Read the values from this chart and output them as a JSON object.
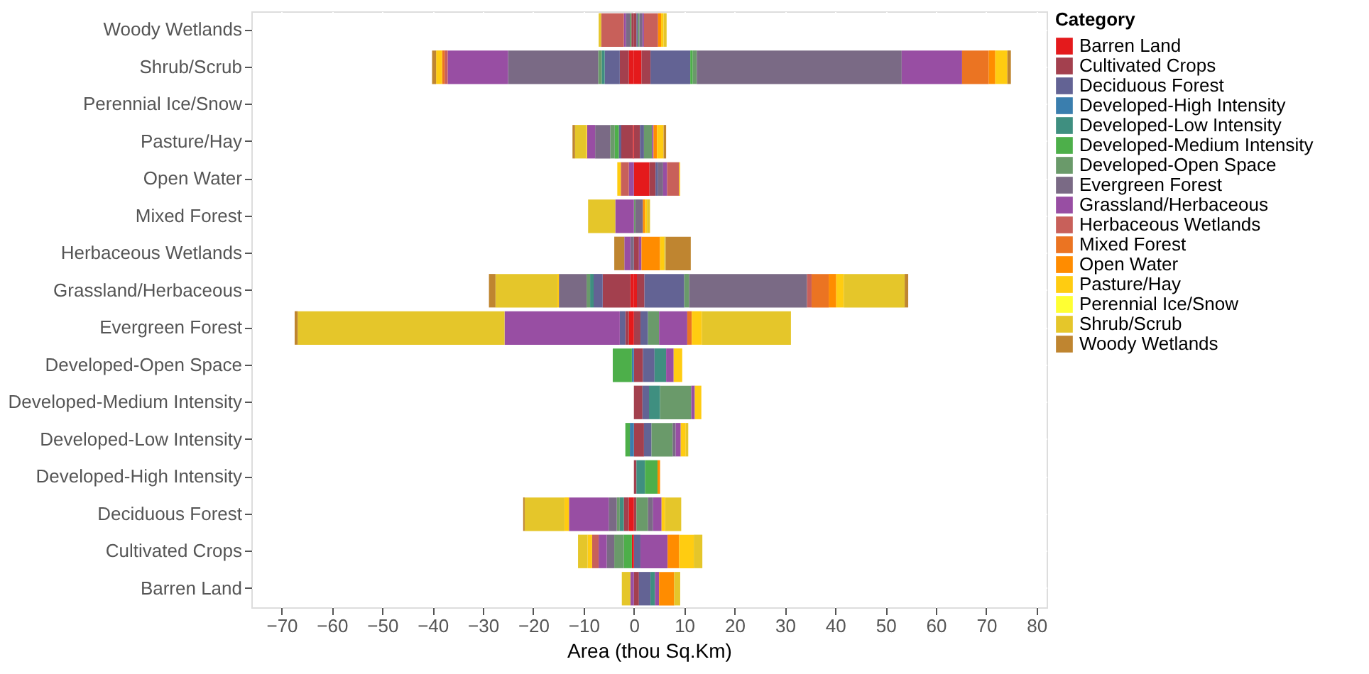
{
  "chart_data": {
    "type": "bar",
    "orientation": "horizontal",
    "stacked": true,
    "xlabel": "Area (thou Sq.Km)",
    "legend_title": "Category",
    "legend": "right",
    "grid": true,
    "categories": [
      "Woody Wetlands",
      "Shrub/Scrub",
      "Perennial Ice/Snow",
      "Pasture/Hay",
      "Open Water",
      "Mixed Forest",
      "Herbaceous Wetlands",
      "Grassland/Herbaceous",
      "Evergreen Forest",
      "Developed-Open Space",
      "Developed-Medium Intensity",
      "Developed-Low Intensity",
      "Developed-High Intensity",
      "Deciduous Forest",
      "Cultivated Crops",
      "Barren Land"
    ],
    "xlim": [
      -76,
      82
    ],
    "xticks": [
      -70,
      -60,
      -50,
      -40,
      -30,
      -20,
      -10,
      0,
      10,
      20,
      30,
      40,
      50,
      60,
      70,
      80
    ],
    "series": [
      {
        "name": "Barren Land",
        "color": "#e41a1c",
        "values": [
          null,
          1.5,
          null,
          null,
          3.1,
          null,
          null,
          0.6,
          null,
          null,
          null,
          null,
          null,
          null,
          null,
          null
        ]
      },
      {
        "name": "Cultivated Crops",
        "color": "#a3404e",
        "values": [
          0.5,
          1.8,
          null,
          1.2,
          1.2,
          null,
          1.0,
          1.5,
          1.3,
          1.8,
          1.7,
          2.0,
          0.5,
          0.5,
          null,
          1.0
        ]
      },
      {
        "name": "Deciduous Forest",
        "color": "#636394",
        "values": [
          0.3,
          7.9,
          null,
          0.8,
          0.5,
          null,
          null,
          7.9,
          1.5,
          2.3,
          1.3,
          1.5,
          null,
          null,
          1.3,
          2.3
        ]
      },
      {
        "name": "Developed-High Intensity",
        "color": "#3a7eae",
        "values": [
          null,
          null,
          null,
          null,
          null,
          null,
          null,
          null,
          null,
          null,
          null,
          null,
          null,
          null,
          null,
          null
        ]
      },
      {
        "name": "Developed-Low Intensity",
        "color": "#3f8f80",
        "values": [
          null,
          null,
          null,
          null,
          null,
          null,
          null,
          null,
          null,
          2.3,
          2.2,
          null,
          1.7,
          null,
          null,
          0.9
        ]
      },
      {
        "name": "Developed-Medium Intensity",
        "color": "#4daf4a",
        "values": [
          null,
          0.5,
          null,
          null,
          null,
          null,
          null,
          null,
          null,
          null,
          null,
          null,
          2.5,
          null,
          null,
          null
        ]
      },
      {
        "name": "Developed-Open Space",
        "color": "#6a9a6a",
        "values": [
          0.3,
          0.8,
          null,
          1.6,
          null,
          0.3,
          null,
          1.0,
          2.2,
          null,
          6.2,
          4.2,
          null,
          2.3,
          null,
          null
        ]
      },
      {
        "name": "Evergreen Forest",
        "color": "#7a6a85",
        "values": [
          0.6,
          40.7,
          null,
          null,
          1.0,
          1.5,
          null,
          23.4,
          null,
          null,
          null,
          0.6,
          null,
          1.0,
          null,
          null
        ]
      },
      {
        "name": "Grassland/Herbaceous",
        "color": "#984ea3",
        "values": [
          0.3,
          12.0,
          null,
          0.3,
          0.8,
          null,
          0.5,
          null,
          5.6,
          1.5,
          0.7,
          1.0,
          null,
          1.7,
          5.4,
          0.8
        ]
      },
      {
        "name": "Herbaceous Wetlands",
        "color": "#c8605a",
        "values": [
          2.8,
          null,
          null,
          null,
          2.4,
          null,
          null,
          0.9,
          null,
          null,
          null,
          null,
          null,
          null,
          null,
          null
        ]
      },
      {
        "name": "Mixed Forest",
        "color": "#eb7422",
        "values": [
          null,
          5.3,
          null,
          null,
          null,
          null,
          null,
          3.4,
          0.9,
          null,
          null,
          null,
          null,
          null,
          null,
          null
        ]
      },
      {
        "name": "Open Water",
        "color": "#ff8c00",
        "values": [
          0.6,
          1.3,
          null,
          0.7,
          null,
          0.4,
          3.7,
          1.5,
          null,
          null,
          null,
          null,
          0.5,
          null,
          2.3,
          3.0
        ]
      },
      {
        "name": "Pasture/Hay",
        "color": "#ffcc11",
        "values": [
          0.5,
          2.4,
          null,
          1.3,
          0.2,
          0.4,
          0.8,
          1.5,
          2.0,
          1.7,
          1.3,
          1.0,
          null,
          0.7,
          2.9,
          null
        ]
      },
      {
        "name": "Perennial Ice/Snow",
        "color": "#ffff33",
        "values": [
          null,
          null,
          null,
          null,
          null,
          null,
          null,
          null,
          null,
          null,
          null,
          null,
          null,
          null,
          null,
          null
        ]
      },
      {
        "name": "Shrub/Scrub",
        "color": "#e5c62a",
        "values": [
          0.6,
          null,
          null,
          null,
          null,
          0.6,
          0.3,
          12.1,
          17.7,
          null,
          null,
          0.5,
          null,
          3.2,
          1.7,
          1.2
        ]
      },
      {
        "name": "Woody Wetlands",
        "color": "#bf8530",
        "values": [
          null,
          0.7,
          null,
          0.5,
          null,
          null,
          5.0,
          0.7,
          null,
          null,
          null,
          null,
          null,
          null,
          null,
          null
        ]
      },
      {
        "color": "#e41a1c",
        "values": [
          null,
          -1.0,
          null,
          -0.2,
          null,
          null,
          null,
          -0.7,
          -1.0,
          null,
          null,
          null,
          null,
          -1.0,
          -0.4,
          null
        ]
      },
      {
        "color": "#a3404e",
        "values": [
          -0.5,
          -1.8,
          null,
          -2.3,
          null,
          null,
          null,
          -5.5,
          -0.7,
          null,
          null,
          null,
          null,
          -1.0,
          null,
          null
        ]
      },
      {
        "color": "#636394",
        "values": [
          null,
          -3.0,
          null,
          -0.5,
          null,
          null,
          null,
          -1.8,
          -1.1,
          null,
          null,
          null,
          null,
          null,
          null,
          null
        ]
      },
      {
        "color": "#3a7eae",
        "values": [
          null,
          null,
          null,
          null,
          null,
          null,
          null,
          null,
          null,
          -0.4,
          null,
          -0.8,
          null,
          null,
          null,
          null
        ]
      },
      {
        "color": "#3f8f80",
        "values": [
          null,
          -0.6,
          null,
          null,
          null,
          null,
          null,
          -0.7,
          null,
          null,
          null,
          null,
          null,
          -0.8,
          null,
          null
        ]
      },
      {
        "color": "#4daf4a",
        "values": [
          null,
          null,
          null,
          -0.8,
          null,
          null,
          null,
          null,
          null,
          -3.8,
          null,
          -0.9,
          null,
          null,
          -1.6,
          null
        ]
      },
      {
        "color": "#6a9a6a",
        "values": [
          -0.3,
          -0.7,
          null,
          -0.9,
          null,
          null,
          null,
          -0.7,
          null,
          null,
          null,
          null,
          null,
          -0.6,
          -1.9,
          null
        ]
      },
      {
        "color": "#7a6a85",
        "values": [
          -0.8,
          -17.9,
          null,
          -3.0,
          null,
          null,
          -0.7,
          -5.5,
          null,
          null,
          null,
          null,
          null,
          -1.6,
          -1.5,
          null
        ]
      },
      {
        "color": "#984ea3",
        "values": [
          -0.4,
          -12.0,
          null,
          -1.6,
          -1.0,
          -3.7,
          -1.2,
          null,
          -22.9,
          null,
          null,
          null,
          null,
          -7.9,
          -1.6,
          -0.7
        ]
      },
      {
        "color": "#c8605a",
        "values": [
          -4.5,
          -0.6,
          null,
          null,
          -1.6,
          null,
          null,
          null,
          null,
          null,
          null,
          null,
          null,
          null,
          -1.3,
          null
        ]
      },
      {
        "color": "#eb7422",
        "values": [
          null,
          -0.5,
          null,
          null,
          null,
          null,
          null,
          null,
          null,
          null,
          null,
          null,
          null,
          null,
          null,
          null
        ]
      },
      {
        "color": "#ffcc11",
        "values": [
          null,
          -1.2,
          null,
          -0.2,
          -0.7,
          null,
          null,
          -0.3,
          null,
          null,
          null,
          null,
          null,
          -0.9,
          -0.9,
          null
        ]
      },
      {
        "color": "#e5c62a",
        "values": [
          -0.5,
          null,
          null,
          -2.2,
          null,
          -5.4,
          null,
          -12.3,
          -41.1,
          null,
          null,
          null,
          null,
          -7.9,
          -1.9,
          -1.7
        ]
      },
      {
        "color": "#bf8530",
        "values": [
          null,
          -0.8,
          null,
          -0.5,
          null,
          null,
          -2.0,
          -1.3,
          -0.6,
          null,
          null,
          null,
          null,
          -0.3,
          null,
          null
        ]
      }
    ]
  }
}
